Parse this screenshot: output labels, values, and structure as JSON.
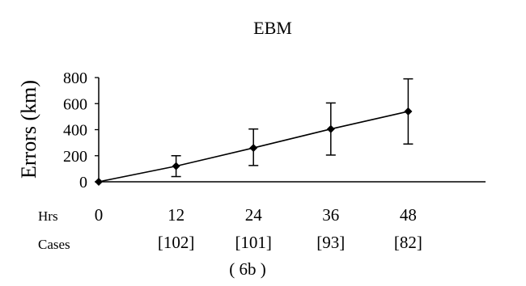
{
  "chart_data": {
    "type": "line",
    "title": "EBM",
    "ylabel": "Errors (km)",
    "x_row_label": "Hrs",
    "cases_row_label": "Cases",
    "x": [
      0,
      12,
      24,
      36,
      48
    ],
    "x_tick_labels": [
      "0",
      "12",
      "24",
      "36",
      "48"
    ],
    "cases": [
      "[102]",
      "[101]",
      "[93]",
      "[82]"
    ],
    "y_ticks": [
      "800",
      "600",
      "400",
      "200",
      "0"
    ],
    "y_tick_values": [
      800,
      600,
      400,
      200,
      0
    ],
    "ylim": [
      0,
      800
    ],
    "xlim": [
      0,
      60
    ],
    "series": [
      {
        "values": [
          0,
          120,
          260,
          405,
          540
        ],
        "error_low": [
          0,
          40,
          125,
          205,
          290
        ],
        "error_high": [
          0,
          200,
          405,
          605,
          790
        ],
        "marker": "diamond",
        "color": "#000000"
      }
    ],
    "caption": "( 6b )",
    "grid": false,
    "legend": "none"
  }
}
